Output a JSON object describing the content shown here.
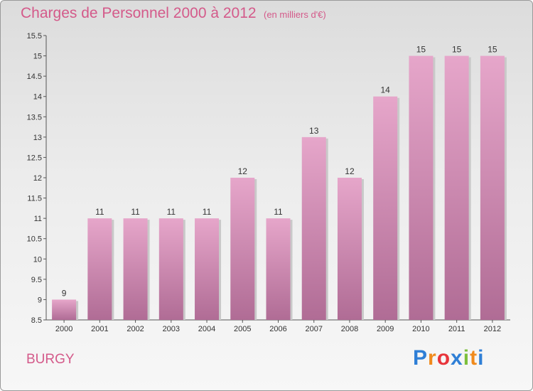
{
  "header": {
    "title": "Charges de Personnel 2000 à 2012",
    "subtitle": "(en milliers d'€)"
  },
  "footer": {
    "commune": "BURGY",
    "logo": {
      "letters": [
        "P",
        "r",
        "o",
        "x",
        "i",
        "t",
        "i"
      ],
      "colors": [
        "#2f7fd6",
        "#f08a1c",
        "#e8353b",
        "#2f7fd6",
        "#7cbf3b",
        "#f08a1c",
        "#2f7fd6"
      ]
    }
  },
  "chart_data": {
    "type": "bar",
    "categories": [
      "2000",
      "2001",
      "2002",
      "2003",
      "2004",
      "2005",
      "2006",
      "2007",
      "2008",
      "2009",
      "2010",
      "2011",
      "2012"
    ],
    "values": [
      9,
      11,
      11,
      11,
      11,
      12,
      11,
      13,
      12,
      14,
      15,
      15,
      15
    ],
    "value_labels": [
      "9",
      "11",
      "11",
      "11",
      "11",
      "12",
      "11",
      "13",
      "12",
      "14",
      "15",
      "15",
      "15"
    ],
    "yticks": [
      8.5,
      9,
      9.5,
      10,
      10.5,
      11,
      11.5,
      12,
      12.5,
      13,
      13.5,
      14,
      14.5,
      15,
      15.5
    ],
    "ytick_labels": [
      "8.5",
      "9",
      "9.5",
      "10",
      "10.5",
      "11",
      "11.5",
      "12",
      "12.5",
      "13",
      "13.5",
      "14",
      "14.5",
      "15",
      "15.5"
    ],
    "ylim": [
      8.5,
      15.5
    ],
    "xlabel": "",
    "ylabel": "",
    "grid": false,
    "bar_color": "#d98fb6"
  }
}
